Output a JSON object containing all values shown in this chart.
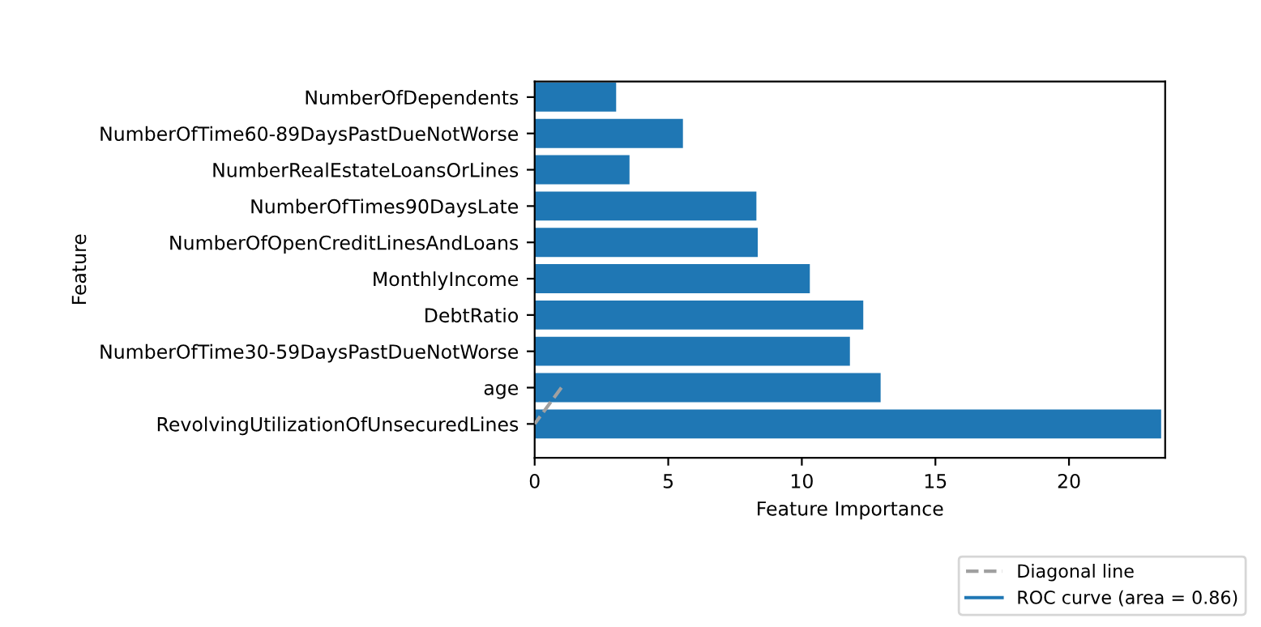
{
  "chart_data": {
    "type": "bar",
    "orientation": "horizontal",
    "xlabel": "Feature Importance",
    "ylabel": "Feature",
    "categories": [
      "NumberOfDependents",
      "NumberOfTime60-89DaysPastDueNotWorse",
      "NumberRealEstateLoansOrLines",
      "NumberOfTimes90DaysLate",
      "NumberOfOpenCreditLinesAndLoans",
      "MonthlyIncome",
      "DebtRatio",
      "NumberOfTime30-59DaysPastDueNotWorse",
      "age",
      "RevolvingUtilizationOfUnsecuredLines"
    ],
    "series": [
      {
        "color": "#1f77b4",
        "values": [
          3.05,
          5.55,
          3.55,
          8.3,
          8.35,
          10.3,
          12.3,
          11.8,
          12.95,
          23.45
        ]
      },
      {
        "type": "line",
        "name": "Diagonal line",
        "color": "#a0a0a0",
        "line_style": "dashed",
        "values": [
          null,
          null,
          null,
          null,
          null,
          null,
          null,
          null,
          1,
          0
        ]
      },
      {
        "type": "line",
        "name": "ROC curve (area = 0.86)",
        "color": "#1f77b4",
        "line_style": "solid",
        "values": [
          null,
          null,
          null,
          null,
          null,
          null,
          null,
          null,
          null,
          null
        ]
      }
    ],
    "xlim": [
      0,
      23.6
    ],
    "xticks": [
      0,
      5,
      10,
      15,
      20
    ],
    "legend": "bottom right",
    "grid": false
  }
}
